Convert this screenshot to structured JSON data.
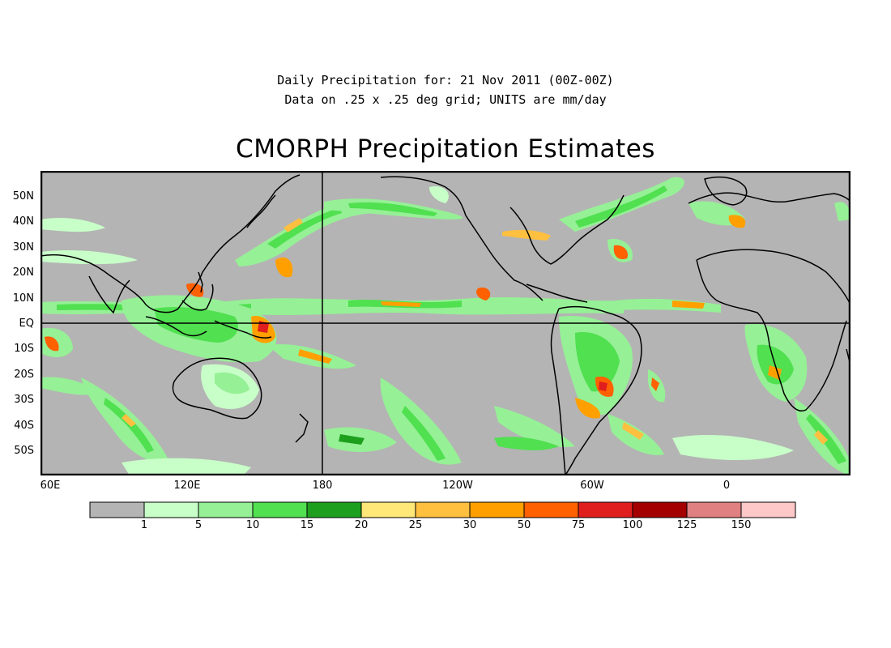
{
  "header": {
    "line1": "Daily Precipitation for: 21 Nov 2011 (00Z-00Z)",
    "line2": "Data on .25 x .25 deg grid; UNITS are mm/day"
  },
  "title": "CMORPH Precipitation Estimates",
  "map": {
    "background_color": "#b4b4b4",
    "latitude_labels": [
      "50N",
      "40N",
      "30N",
      "20N",
      "10N",
      "EQ",
      "10S",
      "20S",
      "30S",
      "40S",
      "50S"
    ],
    "longitude_labels": [
      "60E",
      "120E",
      "180",
      "120W",
      "60W",
      "0"
    ],
    "crosshair_lines": [
      "equator",
      "dateline"
    ]
  },
  "legend": {
    "boundaries": [
      "1",
      "5",
      "10",
      "15",
      "20",
      "25",
      "30",
      "50",
      "75",
      "100",
      "125",
      "150"
    ],
    "colors": [
      "#b4b4b4",
      "#c8ffc8",
      "#96f096",
      "#50e050",
      "#1ea01e",
      "#ffe878",
      "#ffc040",
      "#ffa000",
      "#ff6000",
      "#e01e1e",
      "#a50000",
      "#e08080",
      "#ffc8c8"
    ]
  }
}
